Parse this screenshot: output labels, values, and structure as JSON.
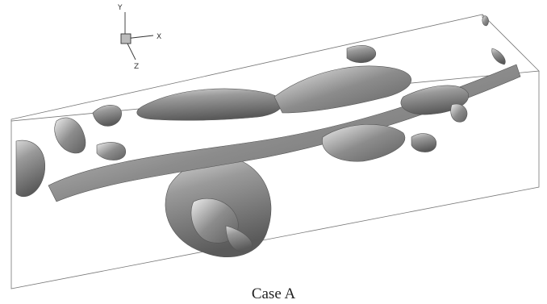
{
  "axes": {
    "y": "Y",
    "x": "X",
    "z": "Z"
  },
  "caption": "Case A"
}
